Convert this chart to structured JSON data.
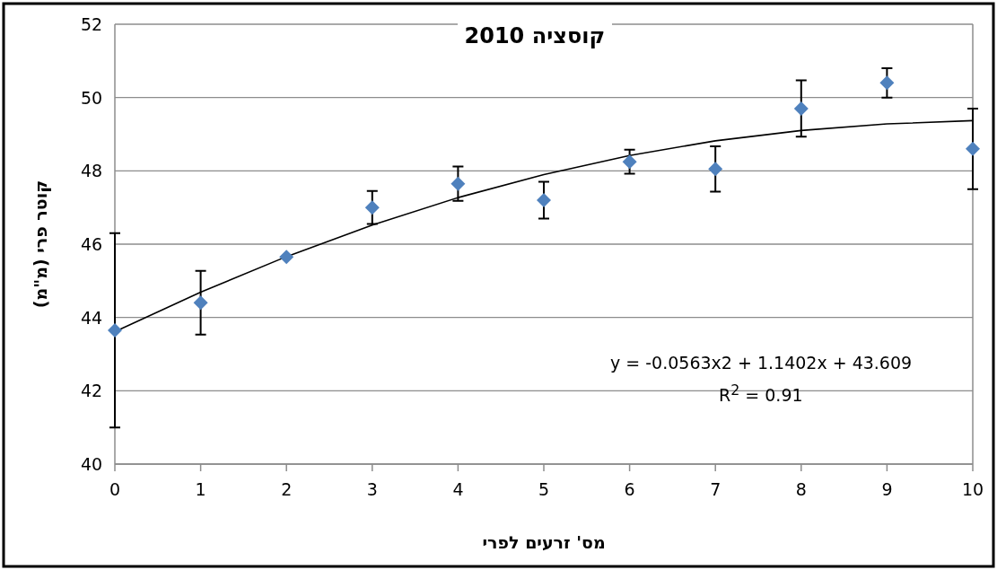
{
  "chart_data": {
    "type": "scatter",
    "title": "קוסציה 2010",
    "xlabel": "מס' זרעים לפרי",
    "ylabel": "קוטר פרי (מ\"מ)",
    "xlim": [
      0,
      10
    ],
    "xticks": [
      0,
      1,
      2,
      3,
      4,
      5,
      6,
      7,
      8,
      9,
      10
    ],
    "ylim": [
      40,
      52
    ],
    "yticks": [
      40,
      42,
      44,
      46,
      48,
      50,
      52
    ],
    "grid": "y",
    "marker": "diamond",
    "annotations": [
      "y = -0.0563x2 + 1.1402x + 43.609",
      "R$^{2}$ = 0.91"
    ],
    "series": [
      {
        "color": "#4f81bd",
        "x": [
          0,
          1,
          2,
          3,
          4,
          5,
          6,
          7,
          8,
          9,
          10
        ],
        "values": [
          43.65,
          44.4,
          45.65,
          47.0,
          47.65,
          47.2,
          48.25,
          48.05,
          49.7,
          50.4,
          48.6
        ],
        "errors": [
          2.65,
          0.87,
          null,
          0.45,
          0.47,
          0.5,
          0.33,
          0.62,
          0.77,
          0.4,
          1.1
        ]
      },
      {
        "type": "line",
        "color": "#000000",
        "marker": "none",
        "x": [
          0,
          1,
          2,
          3,
          4,
          5,
          6,
          7,
          8,
          9,
          10
        ],
        "values": [
          43.61,
          44.69,
          45.66,
          46.52,
          47.27,
          47.9,
          48.42,
          48.82,
          49.1,
          49.28,
          49.37
        ]
      }
    ]
  }
}
